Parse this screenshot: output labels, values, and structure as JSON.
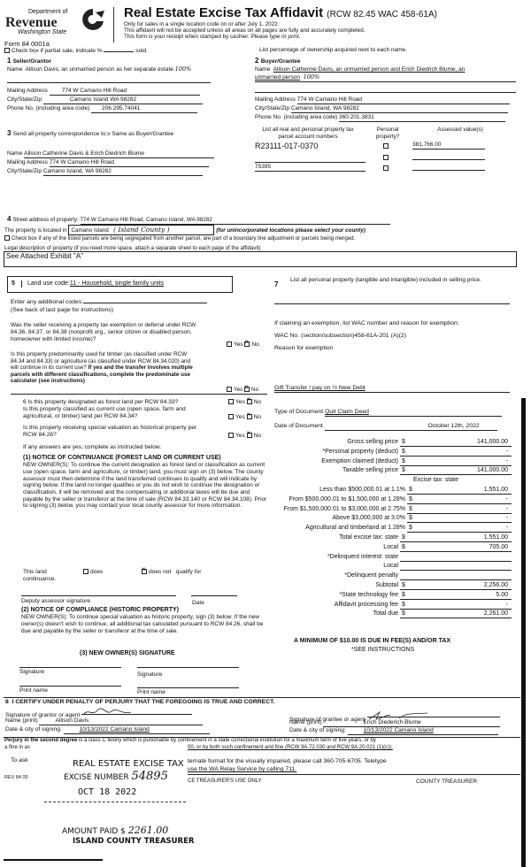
{
  "header": {
    "logo": {
      "dept": "Department of",
      "name": "Revenue",
      "state": "Washington State"
    },
    "form_number": "Form 84 0001a",
    "title": "Real Estate Excise Tax Affidavit",
    "title_ref": "(RCW 82.45 WAC 458-61A)",
    "lines": [
      "Only for sales in a single location code on or after July 1, 2022.",
      "This affidavit will not be accepted unless all areas on all pages are fully and accurately completed.",
      "This form is your receipt when stamped by cashier."
    ],
    "type_note": "Please type or print."
  },
  "partial": {
    "label": "Check box if partial sale, indicate %",
    "suffix": "sold.",
    "checked": false,
    "note": "List percentage of ownership acquired next to each name."
  },
  "seller": {
    "heading_num": "1",
    "heading": "Seller/Grantor",
    "name_label": "Name",
    "name": "Allison Davis, an unmarried person as her separate estate",
    "pct": "100%",
    "mailing_label": "Mailing Address",
    "mailing": "774 W Camano Hill Road",
    "city_label": "City/State/Zip",
    "city": "Camano Island WA 98282",
    "phone_label": "Phone No. (including area code)",
    "phone": "206.295.74041"
  },
  "buyer": {
    "heading_num": "2",
    "heading": "Buyer/Grantee",
    "name_label": "Name",
    "name1": "Allison Catherine Davis, an unmarried person and Erich Diedrich Blume, an",
    "name2": "unmarried person",
    "pct": "100%",
    "mailing_label": "Mailing Address",
    "mailing": "774 W Camano Hill Road",
    "city_label": "City/State/Zip",
    "city": "Camano Island, WA 98282",
    "phone_label": "Phone No. (including area code)",
    "phone": "360.201.3831"
  },
  "correspondence": {
    "heading_num": "3",
    "heading": "Send all property correspondence to:x Same as Buyer/Grantee",
    "name_label": "Name",
    "name": "Allison Catherine Davis & Erich Diedrich Blume",
    "mailing_label": "Mailing Address",
    "mailing": "774 W Camano Hill Road",
    "city_label": "City/State/Zip",
    "city": "Camano Island, WA  98282"
  },
  "parcels": {
    "col1": "List all real and personal property tax parcel account numbers",
    "col2": "Personal property?",
    "col3": "Assessed value(s)",
    "rows": [
      {
        "parcel": "R23111-017-0370",
        "personal": false,
        "value": "381,766.00"
      },
      {
        "parcel": "",
        "personal": false,
        "value": ""
      },
      {
        "parcel": "75395",
        "personal": false,
        "value": ""
      }
    ]
  },
  "property": {
    "heading_num": "4",
    "street_label": "Street address of property:",
    "street": "774 W Camano Hill Road, Camano Island, WA  98282",
    "located_label": "The property is located in",
    "located": "Camano Island",
    "county_hw": "( Island County )",
    "located_note": "(for unincorporated locations please select your county)",
    "segregated": "Check box if any of the listed parcels are being segregated from another parcel, are part of a boundary line adjustment or parcels being merged.",
    "legal_label": "Legal description of property (if you need more space, attach a separate sheet to each page of the affidavit)",
    "legal": "See Attached Exhibit \"A\""
  },
  "land_use": {
    "num": "5",
    "label": "Land use code:",
    "code": "11 - Household, single family units",
    "additional": "Enter any additional codes:",
    "see_back": "(See back of last page for instructions)"
  },
  "questions": [
    {
      "text": "Was the seller receiving a property tax exemption or deferral under RCW 84.36, 84.37, or 84.38 (nonprofit org., senior citizen or disabled person, homeowner with limited income)?",
      "answer": "No"
    },
    {
      "text": "Is this property predominantly used for timber (as classified under RCW 84.34 and 84.33) or agriculture (as classified under RCW 84.34.020) and will continue in its current use?",
      "bold": "If yes and the transfer involves multiple parcels with different classifications, complete the predominate use calculator (see instructions)",
      "answer": "No"
    },
    {
      "text": "6  Is this property designated as forest land per RCW 84.33?",
      "answer": "No"
    },
    {
      "text": "Is this property classified as current use (open space, farm and agricultural, or timber) land per RCW 84.34?",
      "answer": "No"
    },
    {
      "text": "Is this property receiving special valuation as historical property per RCW 84.26?",
      "answer": "No"
    }
  ],
  "yes_label": "Yes",
  "no_label": "No",
  "if_yes": "If any answers are yes, complete as instructed below.",
  "notice1": {
    "title": "(1) NOTICE OF CONTINUANCE (FOREST LAND OR CURRENT USE)",
    "body": "NEW OWNER(S): To continue the current designation as forest land or classification as current use (open space, farm and agriculture, or timber) land, you must sign on (3) below. The county assessor must then determine if the land transferred continues to qualify and will indicate by signing below. If the land no longer qualifies or you do not wish to continue the designation or classification, it will be removed and the compensating or additional taxes will be due and payable by the seller or transferor at the time of sale (RCW 84.33.140 or RCW 84.34.108). Prior to signing (3) below, you may contact your local county assessor for more information.",
    "this_land": "This land",
    "does": "does",
    "does_not": "does not",
    "qualify": "qualify for",
    "continuance": "continuance.",
    "does_checked": false,
    "does_not_checked": true,
    "deputy": "Deputy assessor signature",
    "date": "Date"
  },
  "notice2": {
    "title": "(2) NOTICE OF COMPLIANCE (HISTORIC PROPERTY)",
    "body": "NEW OWNER(S): To continue special valuation as historic property, sign (3) below. If the new owner(s) doesn't wish to continue, all additional tax calculated pursuant to RCW 84.26, shall be due and payable by the seller or transferor at the time of sale."
  },
  "notice3": {
    "title": "(3) NEW OWNER(S) SIGNATURE",
    "signature": "Signature",
    "print_name": "Print name"
  },
  "personal_property": {
    "num": "7",
    "text": "List all personal property (tangible and intangible) included in selling price."
  },
  "exemption": {
    "label": "If claiming an exemption, list WAC number and reason for exemption:",
    "wac_label": "WAC No. (section/subsection)",
    "wac": "458-61A-201 (A)(2)",
    "reason_label": "Reason for exemption",
    "reason": "Gift Transfer / pay on ½ New Debt"
  },
  "document": {
    "type_label": "Type of Document",
    "type": "Quit Claim Deed",
    "date_label": "Date of Document",
    "date": "October 12th, 2022"
  },
  "tax_rows": [
    {
      "label": "Gross selling price",
      "dollar": true,
      "value": "141,000.00"
    },
    {
      "label": "*Personal property (deduct)",
      "dollar": true,
      "value": "-"
    },
    {
      "label": "Exemption claimed (deduct)",
      "dollar": true,
      "value": "-"
    },
    {
      "label": "Taxable selling price",
      "dollar": true,
      "value": "141,000.00"
    },
    {
      "label": "Excise tax: state",
      "dollar": false,
      "value": "",
      "noline": true
    },
    {
      "label": "Less than $500,000.01 at 1.1%",
      "dollar": true,
      "value": "1,551.00",
      "wide": true
    },
    {
      "label": "From $500,000.01 to $1,500,000 at 1.28%",
      "dollar": true,
      "value": "-",
      "wide": true
    },
    {
      "label": "From $1,500,000.01 to $3,000,000 at 2.75%",
      "dollar": true,
      "value": "-",
      "wide": true
    },
    {
      "label": "Above $3,000,000 at 3.0%",
      "dollar": true,
      "value": "-",
      "wide": true
    },
    {
      "label": "Agricultural and timberland at 1.28%",
      "dollar": true,
      "value": "-",
      "wide": true
    },
    {
      "label": "Total excise tax: state",
      "dollar": true,
      "value": "1,551.00"
    },
    {
      "label": "Local",
      "dollar": true,
      "value": "705.00"
    },
    {
      "label": "*Delinquent interest: state",
      "dollar": false,
      "value": ""
    },
    {
      "label": "Local",
      "dollar": false,
      "value": ""
    },
    {
      "label": "*Delinquent penalty",
      "dollar": false,
      "value": ""
    },
    {
      "label": "Subtotal",
      "dollar": true,
      "value": "2,256.00"
    },
    {
      "label": "*State technology fee",
      "dollar": true,
      "value": "5.00"
    },
    {
      "label": "Affidavit processing fee",
      "dollar": true,
      "value": "-"
    },
    {
      "label": "Total due",
      "dollar": true,
      "value": "2,261.00"
    }
  ],
  "minimum": "A MINIMUM OF $10.00 IS DUE IN FEE(S) AND/OR TAX",
  "see_instructions": "*SEE INSTRUCTIONS",
  "certify": {
    "num": "8",
    "text": "I CERTIFY UNDER PENALTY OF PERJURY THAT THE FOREGOING IS TRUE AND CORRECT.",
    "grantor_sig_label": "Signature of grantor or agent",
    "grantor_name_label": "Name (print)",
    "grantor_name": "Allison Davis",
    "grantor_date_label": "Date & city of signing:",
    "grantor_date": "10/13/2022   Camano Island",
    "grantee_sig_label": "Signature of grantee or agent",
    "grantee_name_label": "Name (print)",
    "grantee_name": "Erich Diederich Blume",
    "grantee_date_label": "Date & city of signing:",
    "grantee_date": "10/13/2022   Camano Island"
  },
  "perjury": {
    "bold": "Perjury in the second degree",
    "line1": "is a class C felony which is punishable by confinement in a state correctional institution for a maximum term of five years, or by",
    "line2_left": "a fine in as",
    "line2_right": "00, or by both such confinement and fine (RCW 9A.72.030 and RCW 9A.20.021 (1)(c))."
  },
  "ask": {
    "left": "To ask",
    "right1": "ternate format for the visually impaired, please call 360-705-6705. Teletype",
    "right2": "use the WA Relay Service by calling 711."
  },
  "footer": {
    "rev": "REV 84 00",
    "treasurer_use": "CE TREASURER'S USE ONLY",
    "county_treasurer": "COUNTY TREASURER"
  },
  "stamp": {
    "line1": "REAL ESTATE EXCISE TAX",
    "excise_label": "EXCISE NUMBER",
    "excise_number": "54895",
    "date": "OCT 18 2022",
    "amount_label": "AMOUNT PAID $",
    "amount": "2261.00",
    "treasurer": "ISLAND COUNTY TREASURER"
  }
}
